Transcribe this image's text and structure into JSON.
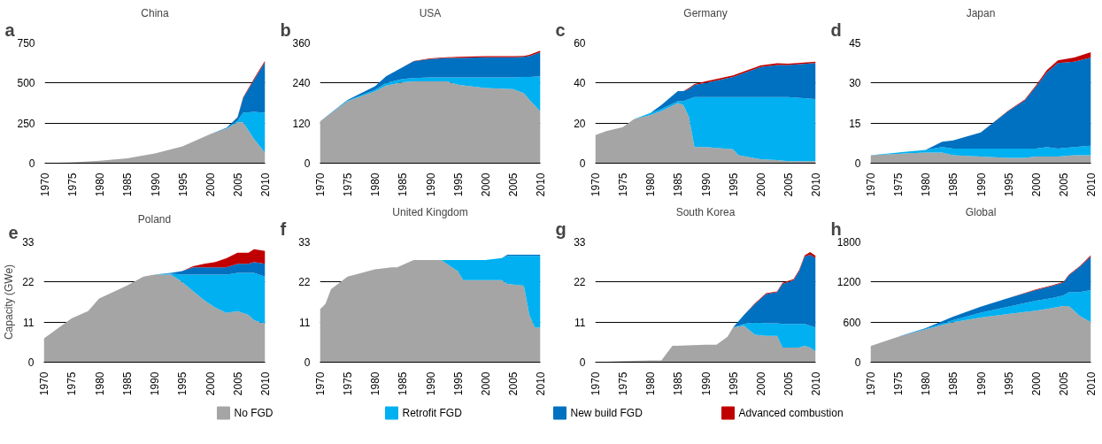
{
  "chart_data": [
    {
      "type": "area",
      "stacked": true,
      "title": "China",
      "annotations": [
        "a"
      ],
      "x": [
        1970,
        1975,
        1980,
        1985,
        1990,
        1995,
        2000,
        2003,
        2005,
        2006,
        2008,
        2010
      ],
      "xlim": [
        1970,
        2010
      ],
      "xticks": [
        1970,
        1975,
        1980,
        1985,
        1990,
        1995,
        2000,
        2005,
        2010
      ],
      "ylim": [
        0,
        750
      ],
      "yticks": [
        0,
        250,
        500,
        750
      ],
      "grid": "y",
      "legend": "bottom",
      "series": [
        {
          "name": "No FGD",
          "color": "#a5a5a5",
          "values": [
            0,
            5,
            15,
            30,
            60,
            105,
            180,
            215,
            255,
            255,
            150,
            65
          ]
        },
        {
          "name": "Retrofit FGD",
          "color": "#00b0f0",
          "values": [
            0,
            0,
            0,
            0,
            0,
            0,
            0,
            2,
            10,
            60,
            170,
            250
          ]
        },
        {
          "name": "New build FGD",
          "color": "#0070c0",
          "values": [
            0,
            0,
            0,
            0,
            0,
            0,
            0,
            3,
            20,
            90,
            200,
            315
          ]
        },
        {
          "name": "Advanced combustion",
          "color": "#c00000",
          "values": [
            0,
            0,
            0,
            0,
            0,
            0,
            0,
            0,
            2,
            5,
            8,
            10
          ]
        }
      ]
    },
    {
      "type": "area",
      "stacked": true,
      "title": "USA",
      "annotations": [
        "b"
      ],
      "x": [
        1970,
        1975,
        1980,
        1982,
        1985,
        1987,
        1990,
        1993,
        1995,
        2000,
        2005,
        2007,
        2008,
        2010
      ],
      "xlim": [
        1970,
        2010
      ],
      "xticks": [
        1970,
        1975,
        1980,
        1985,
        1990,
        1995,
        2000,
        2005,
        2010
      ],
      "ylim": [
        0,
        360
      ],
      "yticks": [
        0,
        120,
        240,
        360
      ],
      "grid": "y",
      "series": [
        {
          "name": "No FGD",
          "color": "#a5a5a5",
          "values": [
            125,
            185,
            215,
            232,
            242,
            245,
            245,
            245,
            235,
            225,
            222,
            210,
            190,
            155
          ]
        },
        {
          "name": "Retrofit FGD",
          "color": "#00b0f0",
          "values": [
            0,
            2,
            5,
            8,
            10,
            10,
            12,
            12,
            22,
            32,
            35,
            48,
            68,
            105
          ]
        },
        {
          "name": "New build FGD",
          "color": "#0070c0",
          "values": [
            0,
            2,
            10,
            20,
            35,
            50,
            55,
            58,
            58,
            60,
            60,
            60,
            62,
            72
          ]
        },
        {
          "name": "Advanced combustion",
          "color": "#c00000",
          "values": [
            0,
            0,
            0,
            0,
            0,
            1,
            2,
            2,
            3,
            3,
            3,
            3,
            4,
            5
          ]
        }
      ]
    },
    {
      "type": "area",
      "stacked": true,
      "title": "Germany",
      "annotations": [
        "c"
      ],
      "x": [
        1970,
        1972,
        1975,
        1977,
        1980,
        1982,
        1985,
        1986,
        1987,
        1988,
        1990,
        1995,
        1996,
        1998,
        2000,
        2003,
        2005,
        2010
      ],
      "xlim": [
        1970,
        2010
      ],
      "xticks": [
        1970,
        1975,
        1980,
        1985,
        1990,
        1995,
        2000,
        2005,
        2010
      ],
      "ylim": [
        0,
        60
      ],
      "yticks": [
        0,
        20,
        40,
        60
      ],
      "grid": "y",
      "series": [
        {
          "name": "No FGD",
          "color": "#a5a5a5",
          "values": [
            14,
            16,
            18,
            22,
            24,
            26,
            30,
            29,
            23,
            8,
            8,
            7,
            4,
            3,
            2,
            1.5,
            1,
            1
          ]
        },
        {
          "name": "Retrofit FGD",
          "color": "#00b0f0",
          "values": [
            0,
            0,
            0,
            0,
            1,
            1,
            1,
            2,
            9,
            25,
            25,
            26,
            29,
            30,
            31,
            31.5,
            32,
            31
          ]
        },
        {
          "name": "New build FGD",
          "color": "#0070c0",
          "values": [
            0,
            0,
            0,
            0,
            0,
            2,
            5,
            5,
            5,
            6,
            7,
            10,
            11,
            13,
            15,
            16,
            16,
            18
          ]
        },
        {
          "name": "Advanced combustion",
          "color": "#c00000",
          "values": [
            0,
            0,
            0,
            0,
            0,
            0,
            0,
            0,
            0.5,
            0.5,
            0.8,
            0.8,
            0.8,
            0.8,
            0.8,
            0.8,
            0.6,
            0.6
          ]
        }
      ]
    },
    {
      "type": "area",
      "stacked": true,
      "title": "Japan",
      "annotations": [
        "d"
      ],
      "x": [
        1970,
        1975,
        1980,
        1983,
        1985,
        1990,
        1995,
        1998,
        2000,
        2002,
        2004,
        2007,
        2010
      ],
      "xlim": [
        1970,
        2010
      ],
      "xticks": [
        1970,
        1975,
        1980,
        1985,
        1990,
        1995,
        2000,
        2005,
        2010
      ],
      "ylim": [
        0,
        45
      ],
      "yticks": [
        0,
        15,
        30,
        45
      ],
      "grid": "y",
      "series": [
        {
          "name": "No FGD",
          "color": "#a5a5a5",
          "values": [
            3,
            3.5,
            4,
            4,
            3,
            2.5,
            2,
            2,
            2.5,
            2.5,
            2.5,
            3,
            3
          ]
        },
        {
          "name": "Retrofit FGD",
          "color": "#00b0f0",
          "values": [
            0,
            0.5,
            1,
            2,
            2.5,
            3,
            3.5,
            3.5,
            3,
            3.5,
            3,
            3,
            3.5
          ]
        },
        {
          "name": "New build FGD",
          "color": "#0070c0",
          "values": [
            0,
            0,
            0,
            2,
            3,
            6,
            14,
            18,
            23,
            28,
            32,
            32,
            33
          ]
        },
        {
          "name": "Advanced combustion",
          "color": "#c00000",
          "values": [
            0,
            0,
            0,
            0,
            0,
            0,
            0.2,
            0.3,
            0.5,
            0.8,
            1,
            1.5,
            2
          ]
        }
      ]
    },
    {
      "type": "area",
      "stacked": true,
      "title": "Poland",
      "ylabel": "Capacity (GWe)",
      "annotations": [
        "e"
      ],
      "x": [
        1970,
        1975,
        1978,
        1980,
        1985,
        1988,
        1990,
        1993,
        1995,
        1997,
        1999,
        2001,
        2003,
        2005,
        2007,
        2008,
        2010
      ],
      "xlim": [
        1970,
        2010
      ],
      "xticks": [
        1970,
        1975,
        1980,
        1985,
        1990,
        1995,
        2000,
        2005,
        2010
      ],
      "ylim": [
        0,
        33
      ],
      "yticks": [
        0,
        11,
        22,
        33
      ],
      "grid": "y",
      "series": [
        {
          "name": "No FGD",
          "color": "#a5a5a5",
          "values": [
            6.5,
            12,
            14,
            17.5,
            21,
            23.5,
            24,
            24,
            22,
            19.5,
            17,
            15,
            13.5,
            14,
            13,
            11.5,
            10.5
          ]
        },
        {
          "name": "Retrofit FGD",
          "color": "#00b0f0",
          "values": [
            0,
            0,
            0,
            0,
            0,
            0,
            0,
            0.3,
            2,
            4.5,
            7,
            9,
            10.5,
            10.5,
            11.5,
            13,
            13
          ]
        },
        {
          "name": "New build FGD",
          "color": "#0070c0",
          "values": [
            0,
            0,
            0,
            0,
            0,
            0,
            0,
            0.2,
            1,
            2,
            2,
            2,
            2,
            2.5,
            2.5,
            3,
            3.5
          ]
        },
        {
          "name": "Advanced combustion",
          "color": "#c00000",
          "values": [
            0,
            0,
            0,
            0,
            0,
            0,
            0,
            0,
            0,
            0.3,
            1,
            1.5,
            2.5,
            3,
            3,
            3.5,
            3.5
          ]
        }
      ]
    },
    {
      "type": "area",
      "stacked": true,
      "title": "United Kingdom",
      "annotations": [
        "f"
      ],
      "x": [
        1970,
        1971,
        1972,
        1975,
        1980,
        1983,
        1984,
        1987,
        1992,
        1995,
        1996,
        2000,
        2003,
        2004,
        2007,
        2008,
        2009,
        2010
      ],
      "xlim": [
        1970,
        2010
      ],
      "xticks": [
        1970,
        1975,
        1980,
        1985,
        1990,
        1995,
        2000,
        2005,
        2010
      ],
      "ylim": [
        0,
        33
      ],
      "yticks": [
        0,
        11,
        22,
        33
      ],
      "grid": "y",
      "series": [
        {
          "name": "No FGD",
          "color": "#a5a5a5",
          "values": [
            14.5,
            16,
            20,
            23.5,
            25.5,
            26,
            26,
            28,
            28,
            25,
            22.5,
            22.5,
            22.5,
            21.5,
            21,
            13,
            9.5,
            9.5
          ]
        },
        {
          "name": "Retrofit FGD",
          "color": "#00b0f0",
          "values": [
            0,
            0,
            0,
            0,
            0,
            0,
            0,
            0,
            0,
            3,
            5.5,
            5.5,
            6.1,
            7.7,
            8.2,
            16.2,
            19.7,
            19.7
          ]
        },
        {
          "name": "New build FGD",
          "color": "#0070c0",
          "values": [
            0,
            0,
            0,
            0,
            0,
            0,
            0,
            0,
            0,
            0,
            0,
            0,
            0,
            0.3,
            0.3,
            0.3,
            0.3,
            0.3
          ]
        }
      ]
    },
    {
      "type": "area",
      "stacked": true,
      "title": "South Korea",
      "annotations": [
        "g"
      ],
      "x": [
        1970,
        1975,
        1980,
        1982,
        1984,
        1990,
        1992,
        1994,
        1995,
        1997,
        1999,
        2001,
        2003,
        2004,
        2006,
        2007,
        2008,
        2009,
        2010
      ],
      "xlim": [
        1970,
        2010
      ],
      "xticks": [
        1970,
        1975,
        1980,
        1985,
        1990,
        1995,
        2000,
        2005,
        2010
      ],
      "ylim": [
        0,
        33
      ],
      "yticks": [
        0,
        11,
        22,
        33
      ],
      "grid": "y",
      "series": [
        {
          "name": "No FGD",
          "color": "#a5a5a5",
          "values": [
            0,
            0.3,
            0.5,
            0.5,
            4.5,
            4.8,
            4.8,
            7,
            9.5,
            10,
            7.5,
            7.2,
            7.2,
            4,
            4,
            4,
            4.5,
            4,
            3
          ]
        },
        {
          "name": "Retrofit FGD",
          "color": "#00b0f0",
          "values": [
            0,
            0,
            0,
            0,
            0,
            0,
            0,
            0,
            0,
            0.5,
            3.5,
            3.5,
            3.5,
            6.5,
            6.5,
            6.5,
            6,
            6,
            6.5
          ]
        },
        {
          "name": "New build FGD",
          "color": "#0070c0",
          "values": [
            0,
            0,
            0,
            0,
            0,
            0,
            0,
            0,
            0,
            2.5,
            5,
            8,
            8.5,
            11,
            12,
            14.5,
            18.5,
            19.5,
            19
          ]
        },
        {
          "name": "Advanced combustion",
          "color": "#c00000",
          "values": [
            0,
            0,
            0,
            0,
            0,
            0,
            0,
            0,
            0,
            0,
            0.2,
            0.2,
            0.2,
            0.3,
            0.3,
            0.3,
            0.3,
            0.7,
            0.7
          ]
        }
      ]
    },
    {
      "type": "area",
      "stacked": true,
      "title": "Global",
      "annotations": [
        "h"
      ],
      "x": [
        1970,
        1975,
        1980,
        1985,
        1990,
        1995,
        2000,
        2003,
        2005,
        2006,
        2008,
        2010
      ],
      "xlim": [
        1970,
        2010
      ],
      "xticks": [
        1970,
        1975,
        1980,
        1985,
        1990,
        1995,
        2000,
        2005,
        2010
      ],
      "ylim": [
        0,
        1800
      ],
      "yticks": [
        0,
        600,
        1200,
        1800
      ],
      "grid": "y",
      "series": [
        {
          "name": "No FGD",
          "color": "#a5a5a5",
          "values": [
            240,
            380,
            490,
            600,
            670,
            720,
            770,
            810,
            840,
            840,
            690,
            600
          ]
        },
        {
          "name": "Retrofit FGD",
          "color": "#00b0f0",
          "values": [
            0,
            0,
            10,
            30,
            70,
            110,
            150,
            150,
            160,
            210,
            360,
            480
          ]
        },
        {
          "name": "New build FGD",
          "color": "#0070c0",
          "values": [
            0,
            0,
            10,
            50,
            90,
            130,
            160,
            180,
            190,
            250,
            380,
            500
          ]
        },
        {
          "name": "Advanced combustion",
          "color": "#c00000",
          "values": [
            0,
            0,
            0,
            0,
            0,
            0,
            10,
            10,
            10,
            10,
            10,
            20
          ]
        }
      ]
    }
  ]
}
